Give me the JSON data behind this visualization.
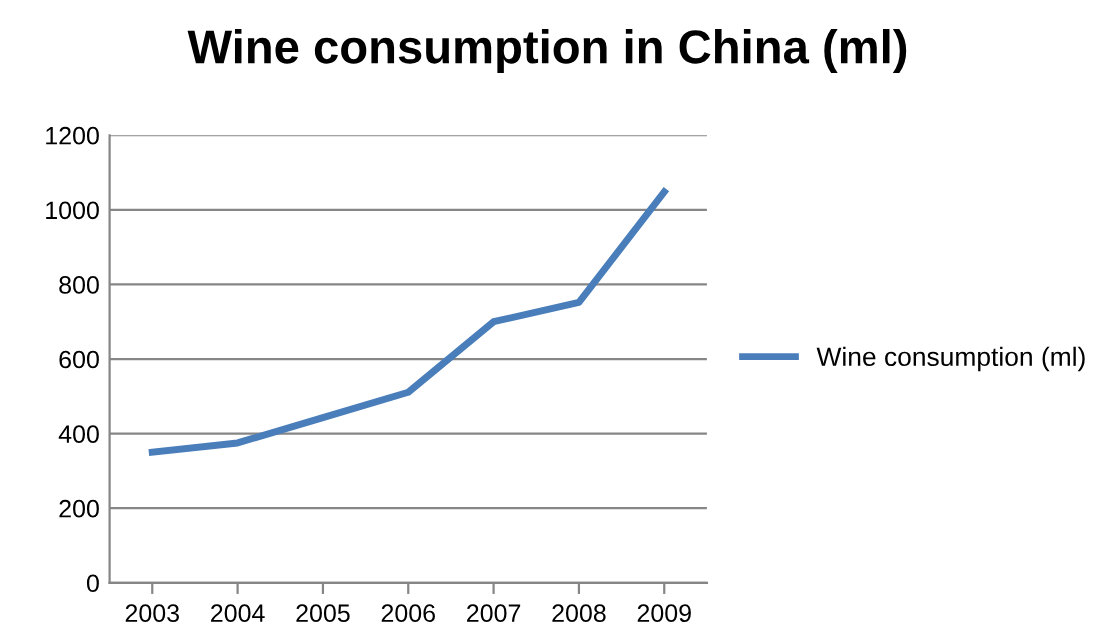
{
  "chart_data": {
    "type": "line",
    "title": "Wine consumption in China (ml)",
    "categories": [
      "2003",
      "2004",
      "2005",
      "2006",
      "2007",
      "2008",
      "2009"
    ],
    "series": [
      {
        "name": "Wine consumption (ml)",
        "color": "#4a7ebb",
        "values": [
          350,
          375,
          443,
          511,
          700,
          752,
          1048
        ]
      }
    ],
    "ylim": [
      0,
      1200
    ],
    "yticks": [
      0,
      200,
      400,
      600,
      800,
      1000,
      1200
    ],
    "grid": "y",
    "legend": "right",
    "marker": "none",
    "line_style": "solid"
  }
}
